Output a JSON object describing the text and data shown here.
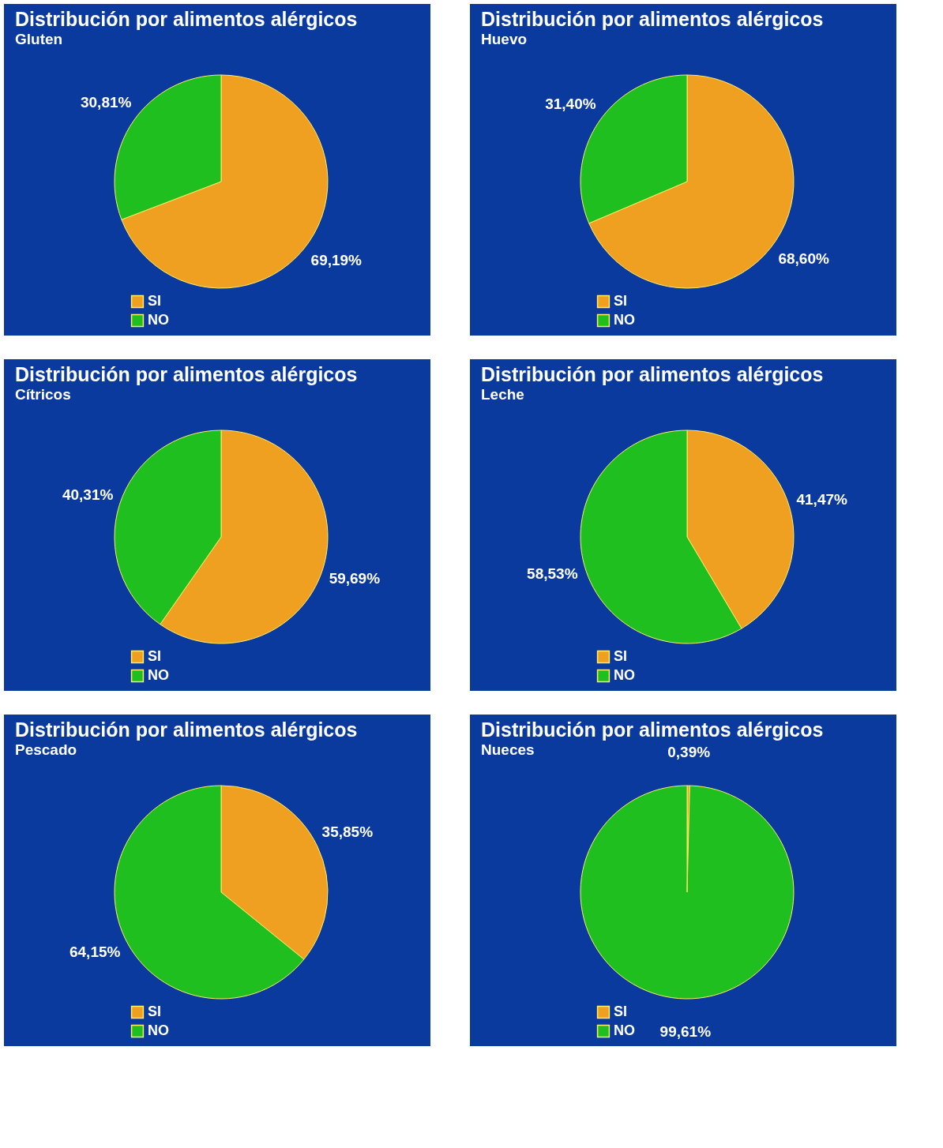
{
  "chart_data": [
    {
      "type": "pie",
      "title": "Distribución por alimentos alérgicos",
      "subtitle": "Gluten",
      "categories": [
        "SI",
        "NO"
      ],
      "values": [
        69.19,
        30.81
      ],
      "value_labels": [
        "69,19%",
        "30,81%"
      ],
      "colors": [
        "#f0a020",
        "#1fbf1f"
      ],
      "legend": "bottom"
    },
    {
      "type": "pie",
      "title": "Distribución por alimentos alérgicos",
      "subtitle": "Huevo",
      "categories": [
        "SI",
        "NO"
      ],
      "values": [
        68.6,
        31.4
      ],
      "value_labels": [
        "68,60%",
        "31,40%"
      ],
      "colors": [
        "#f0a020",
        "#1fbf1f"
      ],
      "legend": "bottom"
    },
    {
      "type": "pie",
      "title": "Distribución por alimentos alérgicos",
      "subtitle": "Cítricos",
      "categories": [
        "SI",
        "NO"
      ],
      "values": [
        59.69,
        40.31
      ],
      "value_labels": [
        "59,69%",
        "40,31%"
      ],
      "colors": [
        "#f0a020",
        "#1fbf1f"
      ],
      "legend": "bottom"
    },
    {
      "type": "pie",
      "title": "Distribución por alimentos alérgicos",
      "subtitle": "Leche",
      "categories": [
        "SI",
        "NO"
      ],
      "values": [
        41.47,
        58.53
      ],
      "value_labels": [
        "41,47%",
        "58,53%"
      ],
      "colors": [
        "#f0a020",
        "#1fbf1f"
      ],
      "legend": "bottom"
    },
    {
      "type": "pie",
      "title": "Distribución por alimentos alérgicos",
      "subtitle": "Pescado",
      "categories": [
        "SI",
        "NO"
      ],
      "values": [
        35.85,
        64.15
      ],
      "value_labels": [
        "35,85%",
        "64,15%"
      ],
      "colors": [
        "#f0a020",
        "#1fbf1f"
      ],
      "legend": "bottom"
    },
    {
      "type": "pie",
      "title": "Distribución por alimentos alérgicos",
      "subtitle": "Nueces",
      "categories": [
        "SI",
        "NO"
      ],
      "values": [
        0.39,
        99.61
      ],
      "value_labels": [
        "0,39%",
        "99,61%"
      ],
      "colors": [
        "#f0a020",
        "#1fbf1f"
      ],
      "legend": "bottom"
    }
  ]
}
